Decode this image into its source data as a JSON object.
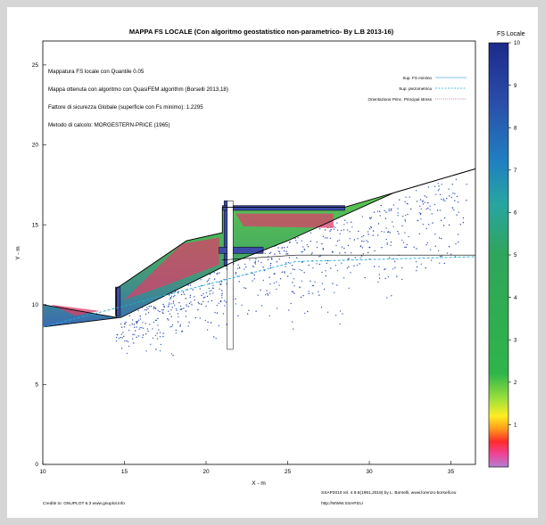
{
  "chart_data": {
    "type": "heatmap",
    "title": "MAPPA FS LOCALE (Con algoritmo geostatistico non-parametrico- By L.B 2013-16)",
    "xlabel": "X - m",
    "ylabel": "Y - m",
    "xlim": [
      10,
      36.5
    ],
    "ylim": [
      0,
      26.5
    ],
    "xticks": [
      "10",
      "15",
      "20",
      "25",
      "30",
      "35"
    ],
    "yticks": [
      "0",
      "5",
      "10",
      "15",
      "20",
      "25"
    ],
    "grid": false,
    "colorbar": {
      "label": "FS Locale",
      "min": 0,
      "max": 10,
      "ticks": [
        "1",
        "2",
        "3",
        "4",
        "5",
        "6",
        "7",
        "8",
        "9",
        "10"
      ]
    },
    "info_lines": [
      "Mappatura FS locale con Quantile  0.05",
      "Mappa ottenuta con algoritmo con QuasiFEM algorithm (Borselli 2013,18)",
      "Fattore di sicurezza Globale (superficie con Fs minimo): 1.2295",
      "Metodo di calcolo: MORGESTERN-PRICE (1965)"
    ],
    "legend": {
      "position": "top-right",
      "entries": [
        {
          "label": "Sup. FS minimo",
          "color": "#5aaee0"
        },
        {
          "label": "Sup. piezometrica",
          "color": "#22aadd"
        },
        {
          "label": "Orientazione Princ. Principal stress",
          "color": "#dd44aa"
        }
      ]
    },
    "footer_left": "Credits to: GNUPLOT 6.3 www.gnuplot.info",
    "footer_right_1": "SSAP2010 rel. 4.9.6(1991,2018) by L. Borselli, www.lorenzo-borselli.eu",
    "footer_right_2": "http://WWW.SSAP.EU",
    "slope_profile": [
      [
        10,
        10
      ],
      [
        14.5,
        9.2
      ],
      [
        14.5,
        11
      ],
      [
        18.8,
        14
      ],
      [
        21,
        14.5
      ],
      [
        21,
        16.1
      ],
      [
        28.5,
        16.1
      ],
      [
        36.5,
        18.5
      ]
    ],
    "slip_surface": [
      [
        10,
        8.6
      ],
      [
        14.8,
        9.2
      ],
      [
        21.5,
        12.6
      ],
      [
        25,
        14
      ],
      [
        31.5,
        17
      ],
      [
        36.5,
        18.5
      ]
    ],
    "piezometric_line": [
      [
        10,
        8.6
      ],
      [
        25.5,
        12.7
      ],
      [
        36.5,
        13
      ]
    ],
    "water_table": [
      [
        21,
        12.8
      ],
      [
        25.5,
        13.1
      ],
      [
        36.5,
        13.1
      ]
    ],
    "colors": {
      "low_fs": "#d9406a",
      "mid_fs": "#5dc646",
      "high_fs": "#3b4ca8"
    }
  }
}
